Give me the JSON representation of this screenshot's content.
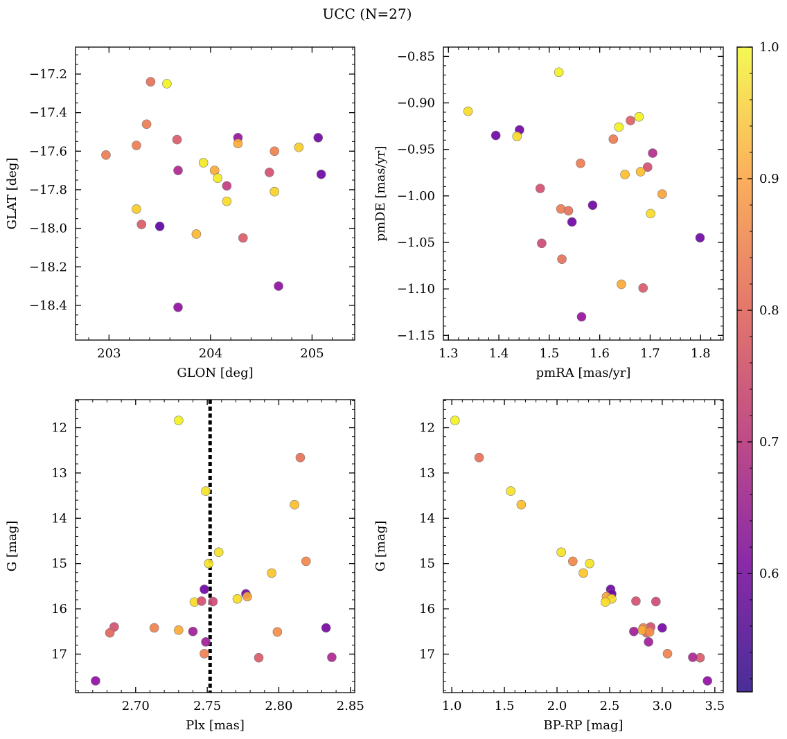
{
  "figure": {
    "title": "UCC (N=27)"
  },
  "colorbar": {
    "ticks": [
      "0.6",
      "0.7",
      "0.8",
      "0.9",
      "1.0"
    ],
    "tick_values": [
      0.6,
      0.7,
      0.8,
      0.9,
      1.0
    ],
    "range": [
      0.51,
      1.0
    ]
  },
  "chart_data": [
    {
      "type": "scatter",
      "xlabel": "GLON [deg]",
      "ylabel": "GLAT [deg]",
      "xlim": [
        202.67,
        205.42
      ],
      "ylim": [
        -18.58,
        -17.06
      ],
      "xticks": [
        203,
        204,
        205
      ],
      "xtick_labels": [
        "203",
        "204",
        "205"
      ],
      "yticks": [
        -17.2,
        -17.4,
        -17.6,
        -17.8,
        -18.0,
        -18.2,
        -18.4
      ],
      "ytick_labels": [
        "−17.2",
        "−17.4",
        "−17.6",
        "−17.8",
        "−18.0",
        "−18.2",
        "−18.4"
      ],
      "xminor": 0.2,
      "yminor": 0.05,
      "points": [
        {
          "x": 203.41,
          "y": -17.24,
          "c": 0.79
        },
        {
          "x": 203.57,
          "y": -17.25,
          "c": 0.99
        },
        {
          "x": 203.37,
          "y": -17.46,
          "c": 0.81
        },
        {
          "x": 202.97,
          "y": -17.62,
          "c": 0.81
        },
        {
          "x": 203.27,
          "y": -17.57,
          "c": 0.81
        },
        {
          "x": 203.67,
          "y": -17.54,
          "c": 0.75
        },
        {
          "x": 203.68,
          "y": -17.7,
          "c": 0.65
        },
        {
          "x": 203.93,
          "y": -17.66,
          "c": 0.98
        },
        {
          "x": 204.04,
          "y": -17.7,
          "c": 0.89
        },
        {
          "x": 204.07,
          "y": -17.74,
          "c": 0.98
        },
        {
          "x": 204.16,
          "y": -17.78,
          "c": 0.69
        },
        {
          "x": 204.16,
          "y": -17.86,
          "c": 0.96
        },
        {
          "x": 204.27,
          "y": -17.53,
          "c": 0.61
        },
        {
          "x": 204.27,
          "y": -17.56,
          "c": 0.89
        },
        {
          "x": 204.58,
          "y": -17.71,
          "c": 0.73
        },
        {
          "x": 204.63,
          "y": -17.6,
          "c": 0.82
        },
        {
          "x": 204.63,
          "y": -17.81,
          "c": 0.95
        },
        {
          "x": 204.87,
          "y": -17.58,
          "c": 0.94
        },
        {
          "x": 205.06,
          "y": -17.53,
          "c": 0.55
        },
        {
          "x": 205.09,
          "y": -17.72,
          "c": 0.55
        },
        {
          "x": 203.27,
          "y": -17.9,
          "c": 0.94
        },
        {
          "x": 203.32,
          "y": -17.98,
          "c": 0.75
        },
        {
          "x": 203.5,
          "y": -17.99,
          "c": 0.52
        },
        {
          "x": 203.86,
          "y": -18.03,
          "c": 0.91
        },
        {
          "x": 204.32,
          "y": -18.05,
          "c": 0.75
        },
        {
          "x": 204.67,
          "y": -18.3,
          "c": 0.6
        },
        {
          "x": 203.68,
          "y": -18.41,
          "c": 0.6
        }
      ]
    },
    {
      "type": "scatter",
      "xlabel": "pmRA [mas/yr]",
      "ylabel": "pmDE [mas/yr]",
      "xlim": [
        1.29,
        1.845
      ],
      "ylim": [
        -1.155,
        -0.84
      ],
      "xticks": [
        1.3,
        1.4,
        1.5,
        1.6,
        1.7,
        1.8
      ],
      "xtick_labels": [
        "1.3",
        "1.4",
        "1.5",
        "1.6",
        "1.7",
        "1.8"
      ],
      "yticks": [
        -0.85,
        -0.9,
        -0.95,
        -1.0,
        -1.05,
        -1.1,
        -1.15
      ],
      "ytick_labels": [
        "−0.85",
        "−0.90",
        "−0.95",
        "−1.00",
        "−1.05",
        "−1.10",
        "−1.15"
      ],
      "xminor": 0.02,
      "yminor": 0.01,
      "points": [
        {
          "x": 1.519,
          "y": -0.867,
          "c": 0.99
        },
        {
          "x": 1.339,
          "y": -0.909,
          "c": 0.96
        },
        {
          "x": 1.394,
          "y": -0.935,
          "c": 0.55
        },
        {
          "x": 1.441,
          "y": -0.929,
          "c": 0.55
        },
        {
          "x": 1.436,
          "y": -0.936,
          "c": 0.96
        },
        {
          "x": 1.638,
          "y": -0.926,
          "c": 0.99
        },
        {
          "x": 1.661,
          "y": -0.919,
          "c": 0.76
        },
        {
          "x": 1.678,
          "y": -0.915,
          "c": 0.99
        },
        {
          "x": 1.627,
          "y": -0.939,
          "c": 0.81
        },
        {
          "x": 1.705,
          "y": -0.954,
          "c": 0.66
        },
        {
          "x": 1.562,
          "y": -0.965,
          "c": 0.81
        },
        {
          "x": 1.695,
          "y": -0.969,
          "c": 0.73
        },
        {
          "x": 1.65,
          "y": -0.977,
          "c": 0.92
        },
        {
          "x": 1.681,
          "y": -0.974,
          "c": 0.92
        },
        {
          "x": 1.724,
          "y": -0.998,
          "c": 0.88
        },
        {
          "x": 1.482,
          "y": -0.992,
          "c": 0.73
        },
        {
          "x": 1.523,
          "y": -1.014,
          "c": 0.81
        },
        {
          "x": 1.538,
          "y": -1.016,
          "c": 0.79
        },
        {
          "x": 1.586,
          "y": -1.01,
          "c": 0.55
        },
        {
          "x": 1.701,
          "y": -1.019,
          "c": 0.96
        },
        {
          "x": 1.545,
          "y": -1.028,
          "c": 0.55
        },
        {
          "x": 1.485,
          "y": -1.051,
          "c": 0.72
        },
        {
          "x": 1.799,
          "y": -1.045,
          "c": 0.55
        },
        {
          "x": 1.525,
          "y": -1.068,
          "c": 0.79
        },
        {
          "x": 1.643,
          "y": -1.095,
          "c": 0.89
        },
        {
          "x": 1.686,
          "y": -1.099,
          "c": 0.75
        },
        {
          "x": 1.564,
          "y": -1.13,
          "c": 0.61
        }
      ]
    },
    {
      "type": "scatter",
      "xlabel": "Plx [mas]",
      "ylabel": "G [mag]",
      "xlim": [
        2.658,
        2.853
      ],
      "ylim": [
        17.85,
        11.38
      ],
      "xticks": [
        2.7,
        2.75,
        2.8,
        2.85
      ],
      "xtick_labels": [
        "2.70",
        "2.75",
        "2.80",
        "2.85"
      ],
      "yticks": [
        12,
        13,
        14,
        15,
        16,
        17
      ],
      "ytick_labels": [
        "12",
        "13",
        "14",
        "15",
        "16",
        "17"
      ],
      "xminor": 0.01,
      "yminor": 0.2,
      "vline": 2.752,
      "points": [
        {
          "x": 2.73,
          "y": 11.84,
          "c": 0.99
        },
        {
          "x": 2.815,
          "y": 12.66,
          "c": 0.79
        },
        {
          "x": 2.749,
          "y": 13.4,
          "c": 0.97
        },
        {
          "x": 2.811,
          "y": 13.7,
          "c": 0.92
        },
        {
          "x": 2.758,
          "y": 14.75,
          "c": 0.97
        },
        {
          "x": 2.819,
          "y": 14.95,
          "c": 0.83
        },
        {
          "x": 2.751,
          "y": 15.0,
          "c": 0.97
        },
        {
          "x": 2.795,
          "y": 15.21,
          "c": 0.93
        },
        {
          "x": 2.748,
          "y": 15.57,
          "c": 0.55
        },
        {
          "x": 2.777,
          "y": 15.67,
          "c": 0.55
        },
        {
          "x": 2.778,
          "y": 15.73,
          "c": 0.88
        },
        {
          "x": 2.771,
          "y": 15.78,
          "c": 0.96
        },
        {
          "x": 2.741,
          "y": 15.85,
          "c": 0.96
        },
        {
          "x": 2.746,
          "y": 15.83,
          "c": 0.73
        },
        {
          "x": 2.754,
          "y": 15.84,
          "c": 0.72
        },
        {
          "x": 2.685,
          "y": 16.4,
          "c": 0.73
        },
        {
          "x": 2.713,
          "y": 16.42,
          "c": 0.82
        },
        {
          "x": 2.682,
          "y": 16.53,
          "c": 0.77
        },
        {
          "x": 2.73,
          "y": 16.47,
          "c": 0.89
        },
        {
          "x": 2.74,
          "y": 16.5,
          "c": 0.63
        },
        {
          "x": 2.799,
          "y": 16.51,
          "c": 0.84
        },
        {
          "x": 2.833,
          "y": 16.42,
          "c": 0.56
        },
        {
          "x": 2.749,
          "y": 16.73,
          "c": 0.63
        },
        {
          "x": 2.748,
          "y": 16.99,
          "c": 0.82
        },
        {
          "x": 2.786,
          "y": 17.08,
          "c": 0.75
        },
        {
          "x": 2.837,
          "y": 17.07,
          "c": 0.65
        },
        {
          "x": 2.672,
          "y": 17.59,
          "c": 0.6
        }
      ]
    },
    {
      "type": "scatter",
      "xlabel": "BP-RP [mag]",
      "ylabel": "G [mag]",
      "xlim": [
        0.92,
        3.58
      ],
      "ylim": [
        17.85,
        11.38
      ],
      "xticks": [
        1.0,
        1.5,
        2.0,
        2.5,
        3.0,
        3.5
      ],
      "xtick_labels": [
        "1.0",
        "1.5",
        "2.0",
        "2.5",
        "3.0",
        "3.5"
      ],
      "yticks": [
        12,
        13,
        14,
        15,
        16,
        17
      ],
      "ytick_labels": [
        "12",
        "13",
        "14",
        "15",
        "16",
        "17"
      ],
      "xminor": 0.1,
      "yminor": 0.2,
      "points": [
        {
          "x": 1.03,
          "y": 11.84,
          "c": 0.99
        },
        {
          "x": 1.26,
          "y": 12.66,
          "c": 0.79
        },
        {
          "x": 1.56,
          "y": 13.4,
          "c": 0.97
        },
        {
          "x": 1.66,
          "y": 13.7,
          "c": 0.92
        },
        {
          "x": 2.04,
          "y": 14.75,
          "c": 0.97
        },
        {
          "x": 2.15,
          "y": 14.95,
          "c": 0.83
        },
        {
          "x": 2.31,
          "y": 15.0,
          "c": 0.97
        },
        {
          "x": 2.25,
          "y": 15.21,
          "c": 0.93
        },
        {
          "x": 2.51,
          "y": 15.57,
          "c": 0.55
        },
        {
          "x": 2.52,
          "y": 15.67,
          "c": 0.55
        },
        {
          "x": 2.47,
          "y": 15.73,
          "c": 0.88
        },
        {
          "x": 2.52,
          "y": 15.78,
          "c": 0.96
        },
        {
          "x": 2.46,
          "y": 15.85,
          "c": 0.96
        },
        {
          "x": 2.75,
          "y": 15.83,
          "c": 0.73
        },
        {
          "x": 2.94,
          "y": 15.84,
          "c": 0.72
        },
        {
          "x": 2.89,
          "y": 16.4,
          "c": 0.73
        },
        {
          "x": 2.82,
          "y": 16.42,
          "c": 0.82
        },
        {
          "x": 2.85,
          "y": 16.53,
          "c": 0.77
        },
        {
          "x": 2.81,
          "y": 16.47,
          "c": 0.89
        },
        {
          "x": 2.73,
          "y": 16.5,
          "c": 0.63
        },
        {
          "x": 2.88,
          "y": 16.51,
          "c": 0.84
        },
        {
          "x": 3.0,
          "y": 16.42,
          "c": 0.56
        },
        {
          "x": 2.87,
          "y": 16.73,
          "c": 0.63
        },
        {
          "x": 3.05,
          "y": 16.99,
          "c": 0.82
        },
        {
          "x": 3.36,
          "y": 17.08,
          "c": 0.75
        },
        {
          "x": 3.29,
          "y": 17.07,
          "c": 0.65
        },
        {
          "x": 3.43,
          "y": 17.59,
          "c": 0.6
        }
      ]
    }
  ]
}
